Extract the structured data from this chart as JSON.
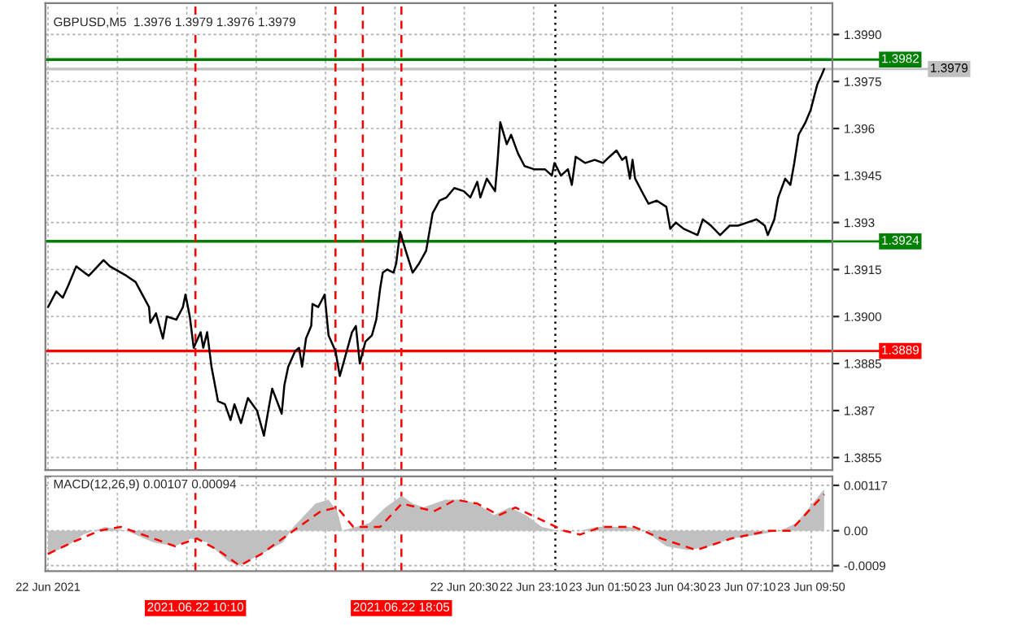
{
  "chart_data": [
    {
      "type": "line",
      "title": "GBPUSD,M5  1.3976 1.3979 1.3976 1.3979",
      "xlim": [
        "2021-06-22T04:24",
        "2021-06-23T10:39"
      ],
      "ylim": [
        1.3851,
        1.4
      ],
      "xticks": [
        {
          "value": "2021-06-22T04:30",
          "label": null
        },
        {
          "value": "2021-06-22T07:10",
          "label": null
        },
        {
          "value": "2021-06-22T09:50",
          "label": null
        },
        {
          "value": "2021-06-22T12:30",
          "label": null
        },
        {
          "value": "2021-06-22T15:10",
          "label": null
        },
        {
          "value": "2021-06-22T17:50",
          "label": null
        },
        {
          "value": "2021-06-22T20:30",
          "label": null
        },
        {
          "value": "2021-06-22T23:10",
          "label": null
        },
        {
          "value": "2021-06-23T01:50",
          "label": null
        },
        {
          "value": "2021-06-23T04:30",
          "label": null
        },
        {
          "value": "2021-06-23T07:10",
          "label": null
        },
        {
          "value": "2021-06-23T09:50",
          "label": null
        }
      ],
      "yticks": [
        1.3855,
        1.387,
        1.3885,
        {
          "value": 1.39,
          "label": "1.3900"
        },
        1.3915,
        1.393,
        1.3945,
        1.396,
        1.3975,
        {
          "value": 1.399,
          "label": "1.3990"
        }
      ],
      "tick_labels": "y",
      "grid": true,
      "series": [
        {
          "color": "#000000",
          "x": [
            "2021-06-22T04:30",
            "2021-06-22T04:49",
            "2021-06-22T05:04",
            "2021-06-22T05:17",
            "2021-06-22T05:35",
            "2021-06-22T06:04",
            "2021-06-22T06:38",
            "2021-06-22T06:53",
            "2021-06-22T07:31",
            "2021-06-22T07:52",
            "2021-06-22T08:23",
            "2021-06-22T08:26",
            "2021-06-22T08:39",
            "2021-06-22T08:55",
            "2021-06-22T09:04",
            "2021-06-22T09:26",
            "2021-06-22T09:41",
            "2021-06-22T09:47",
            "2021-06-22T09:57",
            "2021-06-22T10:06",
            "2021-06-22T10:22",
            "2021-06-22T10:28",
            "2021-06-22T10:37",
            "2021-06-22T10:47",
            "2021-06-22T11:02",
            "2021-06-22T11:18",
            "2021-06-22T11:31",
            "2021-06-22T11:40",
            "2021-06-22T11:55",
            "2021-06-22T12:11",
            "2021-06-22T12:32",
            "2021-06-22T12:48",
            "2021-06-22T12:58",
            "2021-06-22T13:07",
            "2021-06-22T13:29",
            "2021-06-22T13:35",
            "2021-06-22T13:44",
            "2021-06-22T14:00",
            "2021-06-22T14:09",
            "2021-06-22T14:16",
            "2021-06-22T14:25",
            "2021-06-22T14:37",
            "2021-06-22T14:40",
            "2021-06-22T14:53",
            "2021-06-22T15:08",
            "2021-06-22T15:17",
            "2021-06-22T15:33",
            "2021-06-22T15:43",
            "2021-06-22T15:55",
            "2021-06-22T16:11",
            "2021-06-22T16:20",
            "2021-06-22T16:29",
            "2021-06-22T16:42",
            "2021-06-22T16:57",
            "2021-06-22T17:07",
            "2021-06-22T17:16",
            "2021-06-22T17:22",
            "2021-06-22T17:32",
            "2021-06-22T17:47",
            "2021-06-22T17:53",
            "2021-06-22T18:02",
            "2021-06-22T18:15",
            "2021-06-22T18:31",
            "2021-06-22T18:46",
            "2021-06-22T19:02",
            "2021-06-22T19:17",
            "2021-06-22T19:33",
            "2021-06-22T19:49",
            "2021-06-22T20:07",
            "2021-06-22T20:29",
            "2021-06-22T20:44",
            "2021-06-22T21:00",
            "2021-06-22T21:07",
            "2021-06-22T21:22",
            "2021-06-22T21:41",
            "2021-06-22T21:47",
            "2021-06-22T21:53",
            "2021-06-22T22:08",
            "2021-06-22T22:18",
            "2021-06-22T22:34",
            "2021-06-22T22:49",
            "2021-06-22T23:11",
            "2021-06-22T23:36",
            "2021-06-22T23:52",
            "2021-06-22T23:58",
            "2021-06-23T00:13",
            "2021-06-23T00:29",
            "2021-06-23T00:38",
            "2021-06-23T00:47",
            "2021-06-23T01:09",
            "2021-06-23T01:31",
            "2021-06-23T01:50",
            "2021-06-23T02:05",
            "2021-06-23T02:21",
            "2021-06-23T02:34",
            "2021-06-23T02:43",
            "2021-06-23T02:52",
            "2021-06-23T02:58",
            "2021-06-23T03:04",
            "2021-06-23T03:23",
            "2021-06-23T03:35",
            "2021-06-23T03:54",
            "2021-06-23T04:16",
            "2021-06-23T04:25",
            "2021-06-23T04:38",
            "2021-06-23T04:56",
            "2021-06-23T05:28",
            "2021-06-23T05:40",
            "2021-06-23T05:59",
            "2021-06-23T06:20",
            "2021-06-23T06:42",
            "2021-06-23T07:01",
            "2021-06-23T07:23",
            "2021-06-23T07:44",
            "2021-06-23T08:03",
            "2021-06-23T08:10",
            "2021-06-23T08:25",
            "2021-06-23T08:34",
            "2021-06-23T08:50",
            "2021-06-23T09:02",
            "2021-06-23T09:11",
            "2021-06-23T09:21",
            "2021-06-23T09:37",
            "2021-06-23T09:49",
            "2021-06-23T10:04",
            "2021-06-23T10:14",
            "2021-06-23T10:20"
          ],
          "values": [
            1.3903,
            1.3908,
            1.3906,
            1.391,
            1.3916,
            1.3913,
            1.3918,
            1.3916,
            1.3913,
            1.3911,
            1.3903,
            1.3898,
            1.3901,
            1.3893,
            1.39,
            1.3899,
            1.3903,
            1.3907,
            1.39,
            1.389,
            1.3895,
            1.389,
            1.3895,
            1.3884,
            1.3873,
            1.3872,
            1.3867,
            1.3872,
            1.3866,
            1.3874,
            1.387,
            1.3862,
            1.387,
            1.3877,
            1.3869,
            1.3878,
            1.3884,
            1.3889,
            1.389,
            1.3884,
            1.3893,
            1.3897,
            1.3904,
            1.3903,
            1.3907,
            1.3894,
            1.3889,
            1.3881,
            1.3887,
            1.3895,
            1.3897,
            1.3885,
            1.3892,
            1.3894,
            1.3899,
            1.3909,
            1.3914,
            1.3915,
            1.3914,
            1.3917,
            1.3927,
            1.3921,
            1.3914,
            1.3917,
            1.3921,
            1.3933,
            1.3937,
            1.3938,
            1.3941,
            1.394,
            1.3938,
            1.3943,
            1.3938,
            1.3944,
            1.394,
            1.395,
            1.3962,
            1.3955,
            1.3958,
            1.3952,
            1.3948,
            1.3947,
            1.3947,
            1.3945,
            1.3949,
            1.3945,
            1.3947,
            1.3942,
            1.3951,
            1.3949,
            1.395,
            1.3949,
            1.3951,
            1.3953,
            1.395,
            1.3951,
            1.3944,
            1.395,
            1.3944,
            1.3939,
            1.3936,
            1.3937,
            1.3935,
            1.3928,
            1.393,
            1.3928,
            1.3926,
            1.3931,
            1.3929,
            1.3926,
            1.3929,
            1.3929,
            1.393,
            1.3931,
            1.3929,
            1.3926,
            1.3931,
            1.3938,
            1.3944,
            1.3942,
            1.3949,
            1.3958,
            1.3962,
            1.3966,
            1.3974,
            1.3977,
            1.3979
          ]
        }
      ],
      "ref_lines": [
        {
          "axis": "y",
          "value": 1.3982,
          "label": "1.3982",
          "color": "#008000",
          "line_style": "solid"
        },
        {
          "axis": "y",
          "value": 1.3979,
          "label": "1.3979",
          "color": "#c0c0c0",
          "line_style": "solid"
        },
        {
          "axis": "y",
          "value": 1.3924,
          "label": "1.3924",
          "color": "#008000",
          "line_style": "solid"
        },
        {
          "axis": "y",
          "value": 1.3889,
          "label": "1.3889",
          "color": "#ff0000",
          "line_style": "solid"
        },
        {
          "axis": "x",
          "value": "2021-06-22T10:10",
          "color": "#ff0000",
          "line_style": "dashed"
        },
        {
          "axis": "x",
          "value": "2021-06-22T15:33",
          "color": "#ff0000",
          "line_style": "dashed"
        },
        {
          "axis": "x",
          "value": "2021-06-22T16:36",
          "color": "#ff0000",
          "line_style": "dashed"
        },
        {
          "axis": "x",
          "value": "2021-06-22T18:05",
          "color": "#ff0000",
          "line_style": "dashed"
        },
        {
          "axis": "x",
          "value": "2021-06-23T00:00",
          "color": "#000000",
          "line_style": "dotted"
        }
      ]
    },
    {
      "type": "area",
      "title": "MACD(12,26,9) 0.00107 0.00094",
      "xlim": [
        "2021-06-22T04:24",
        "2021-06-23T10:39"
      ],
      "ylim": [
        -0.00104,
        0.0014
      ],
      "xticks": [
        {
          "value": "2021-06-22T04:30",
          "label": "22 Jun 2021"
        },
        {
          "value": "2021-06-22T07:10",
          "label": null
        },
        {
          "value": "2021-06-22T09:50",
          "label": null
        },
        {
          "value": "2021-06-22T12:30",
          "label": null
        },
        {
          "value": "2021-06-22T15:10",
          "label": null
        },
        {
          "value": "2021-06-22T17:50",
          "label": null
        },
        {
          "value": "2021-06-22T20:30",
          "label": "22 Jun 20:30"
        },
        {
          "value": "2021-06-22T23:10",
          "label": "22 Jun 23:10"
        },
        {
          "value": "2021-06-23T01:50",
          "label": "23 Jun 01:50"
        },
        {
          "value": "2021-06-23T04:30",
          "label": "23 Jun 04:30"
        },
        {
          "value": "2021-06-23T07:10",
          "label": "23 Jun 07:10"
        },
        {
          "value": "2021-06-23T09:50",
          "label": "23 Jun 09:50"
        }
      ],
      "yticks": [
        0.00117,
        {
          "value": 0,
          "label": "0.00"
        },
        {
          "value": -0.0009,
          "label": "-0.0009"
        }
      ],
      "grid": true,
      "series": [
        {
          "color": "#c0c0c0",
          "x": [
            "2021-06-22T04:30",
            "2021-06-22T05:14",
            "2021-06-22T05:51",
            "2021-06-22T06:41",
            "2021-06-22T07:31",
            "2021-06-22T08:33",
            "2021-06-22T09:23",
            "2021-06-22T10:00",
            "2021-06-22T10:37",
            "2021-06-22T11:27",
            "2021-06-22T11:52",
            "2021-06-22T12:42",
            "2021-06-22T13:32",
            "2021-06-22T13:56",
            "2021-06-22T14:47",
            "2021-06-22T15:17",
            "2021-06-22T15:37",
            "2021-06-22T15:49",
            "2021-06-22T16:20",
            "2021-06-22T16:51",
            "2021-06-22T17:28",
            "2021-06-22T18:06",
            "2021-06-22T18:31",
            "2021-06-22T18:56",
            "2021-06-22T19:46",
            "2021-06-22T20:23",
            "2021-06-22T21:00",
            "2021-06-22T21:38",
            "2021-06-22T22:15",
            "2021-06-22T22:52",
            "2021-06-22T23:29",
            "2021-06-23T00:07",
            "2021-06-23T00:57",
            "2021-06-23T01:34",
            "2021-06-23T02:49",
            "2021-06-23T03:26",
            "2021-06-23T04:16",
            "2021-06-23T05:06",
            "2021-06-23T05:56",
            "2021-06-23T06:46",
            "2021-06-23T07:49",
            "2021-06-23T08:38",
            "2021-06-23T09:16",
            "2021-06-23T09:53",
            "2021-06-23T10:20"
          ],
          "values": [
            -0.0006,
            -0.0004,
            -0.0001,
            0.0001,
            0.0,
            -0.0003,
            -0.0004,
            -0.0002,
            -0.0003,
            -0.0008,
            -0.0009,
            -0.0006,
            -0.0003,
            0.0001,
            0.0007,
            0.0008,
            0.0005,
            0.0,
            0.0001,
            0.0002,
            0.0006,
            0.0009,
            0.0007,
            0.0006,
            0.0008,
            0.0008,
            0.0007,
            0.0004,
            0.0006,
            0.0004,
            0.0001,
            0.0,
            0.0,
            0.0001,
            0.0001,
            0.0,
            -0.0004,
            -0.0005,
            -0.0004,
            -0.0002,
            -0.0001,
            0.0,
            0.0002,
            0.0007,
            0.00107
          ]
        },
        {
          "type": "line",
          "color": "#ff0000",
          "line_style": "dashed",
          "x": [
            "2021-06-22T04:30",
            "2021-06-22T05:26",
            "2021-06-22T06:28",
            "2021-06-22T07:18",
            "2021-06-22T08:33",
            "2021-06-22T09:23",
            "2021-06-22T10:13",
            "2021-06-22T11:02",
            "2021-06-22T11:52",
            "2021-06-22T12:42",
            "2021-06-22T13:56",
            "2021-06-22T14:59",
            "2021-06-22T15:37",
            "2021-06-22T16:14",
            "2021-06-22T17:16",
            "2021-06-22T18:06",
            "2021-06-22T19:20",
            "2021-06-22T20:10",
            "2021-06-22T21:00",
            "2021-06-22T21:50",
            "2021-06-22T22:28",
            "2021-06-22T23:05",
            "2021-06-23T00:20",
            "2021-06-23T00:57",
            "2021-06-23T01:47",
            "2021-06-23T03:01",
            "2021-06-23T04:04",
            "2021-06-23T05:25",
            "2021-06-23T06:46",
            "2021-06-23T08:13",
            "2021-06-23T09:02",
            "2021-06-23T10:20"
          ],
          "values": [
            -0.0006,
            -0.0003,
            0.0,
            0.0001,
            -0.0002,
            -0.0004,
            -0.0002,
            -0.0005,
            -0.0009,
            -0.0006,
            0.0,
            0.0005,
            0.0006,
            0.0001,
            0.0001,
            0.0007,
            0.0005,
            0.0008,
            0.0007,
            0.0004,
            0.0006,
            0.0004,
            0.0,
            -0.0001,
            0.0001,
            0.0001,
            -0.0002,
            -0.0005,
            -0.0002,
            0.0,
            0.0,
            0.00094
          ]
        }
      ],
      "ref_lines": [
        {
          "axis": "x",
          "value": "2021-06-22T10:10",
          "label": "2021.06.22 10:10",
          "color": "#ff0000",
          "line_style": "dashed"
        },
        {
          "axis": "x",
          "value": "2021-06-22T15:33",
          "color": "#ff0000",
          "line_style": "dashed"
        },
        {
          "axis": "x",
          "value": "2021-06-22T16:36",
          "color": "#ff0000",
          "line_style": "dashed"
        },
        {
          "axis": "x",
          "value": "2021-06-22T18:05",
          "label": "2021.06.22 18:05",
          "color": "#ff0000",
          "line_style": "dashed"
        },
        {
          "axis": "x",
          "value": "2021-06-23T00:00",
          "color": "#000000",
          "line_style": "dotted"
        }
      ]
    }
  ]
}
